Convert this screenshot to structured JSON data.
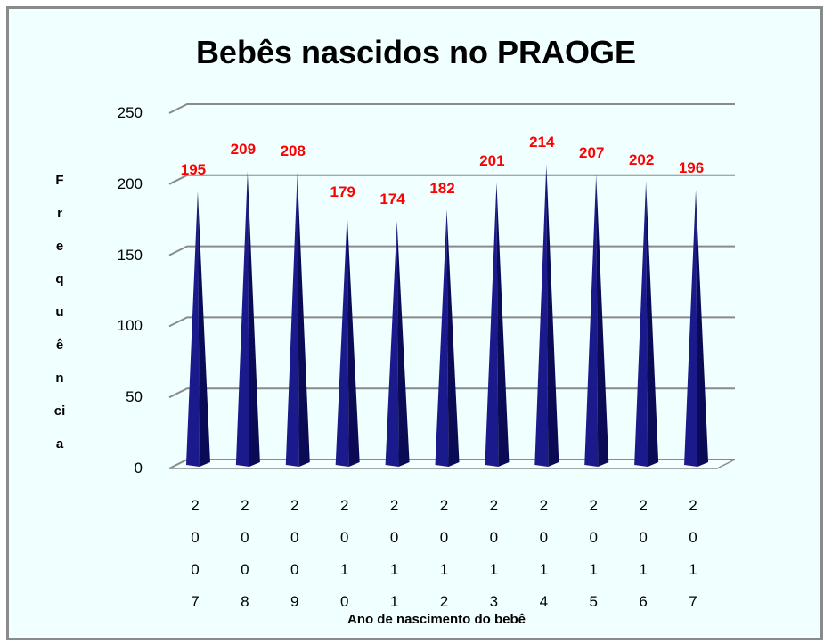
{
  "chart_data": {
    "type": "bar",
    "title": "Bebês nascidos no PRAOGE",
    "x_label": "Ano de nascimento do bebê",
    "y_label": "Frequência",
    "categories": [
      "2007",
      "2008",
      "2009",
      "2010",
      "2011",
      "2012",
      "2013",
      "2014",
      "2015",
      "2016",
      "2017"
    ],
    "values": [
      195,
      209,
      208,
      179,
      174,
      182,
      201,
      214,
      207,
      202,
      196
    ],
    "color": "#1a1a8c",
    "label_color": "#ff0000",
    "ylim": [
      0,
      250
    ],
    "yticks": [
      0,
      50,
      100,
      150,
      200,
      250
    ],
    "grid": true
  }
}
